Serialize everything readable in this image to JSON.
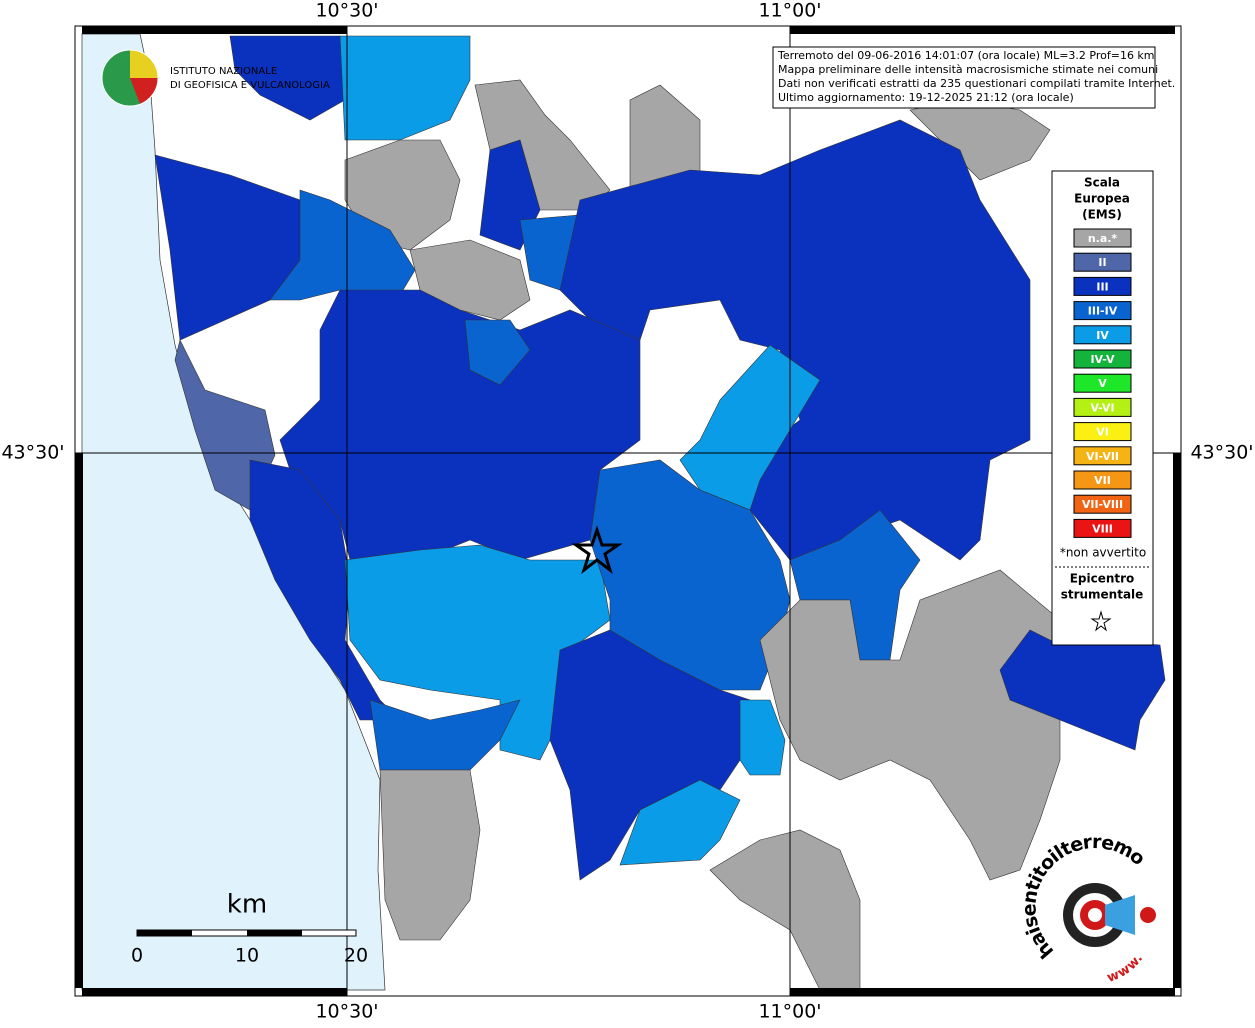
{
  "map": {
    "graticule": {
      "lon_labels": [
        "10°30'",
        "11°00'"
      ],
      "lat_labels": [
        "43°30'"
      ]
    },
    "info": [
      "Terremoto del 09-06-2016 14:01:07 (ora locale) ML=3.2 Prof=16 km",
      "Mappa preliminare delle intensità macrosismiche stimate nei comuni",
      "Dati non verificati estratti da 235 questionari compilati tramite Internet.",
      "Ultimo aggiornamento: 19-12-2025 21:12 (ora locale)"
    ],
    "legend": {
      "title": [
        "Scala",
        "Europea",
        "(EMS)"
      ],
      "items": [
        {
          "label": "n.a.*",
          "color": "#a6a6a6"
        },
        {
          "label": "II",
          "color": "#4f66a8"
        },
        {
          "label": "III",
          "color": "#0b32bf"
        },
        {
          "label": "III-IV",
          "color": "#0a64d0"
        },
        {
          "label": "IV",
          "color": "#0a9ce6"
        },
        {
          "label": "IV-V",
          "color": "#14b43c"
        },
        {
          "label": "V",
          "color": "#1ee628"
        },
        {
          "label": "V-VI",
          "color": "#b4f014"
        },
        {
          "label": "VI",
          "color": "#faf014"
        },
        {
          "label": "VI-VII",
          "color": "#f5b414"
        },
        {
          "label": "VII",
          "color": "#f59614"
        },
        {
          "label": "VII-VIII",
          "color": "#f06414"
        },
        {
          "label": "VIII",
          "color": "#eb1414"
        }
      ],
      "note": "*non avvertito",
      "epicenter": [
        "Epicentro",
        "strumentale"
      ]
    },
    "scale": {
      "unit": "km",
      "ticks": [
        "0",
        "10",
        "20"
      ]
    },
    "logo": [
      "ISTITUTO NAZIONALE",
      "DI GEOFISICA E VULCANOLOGIA"
    ],
    "badge": {
      "name": "haisentitoilterremoto.it",
      "url": "www."
    }
  }
}
